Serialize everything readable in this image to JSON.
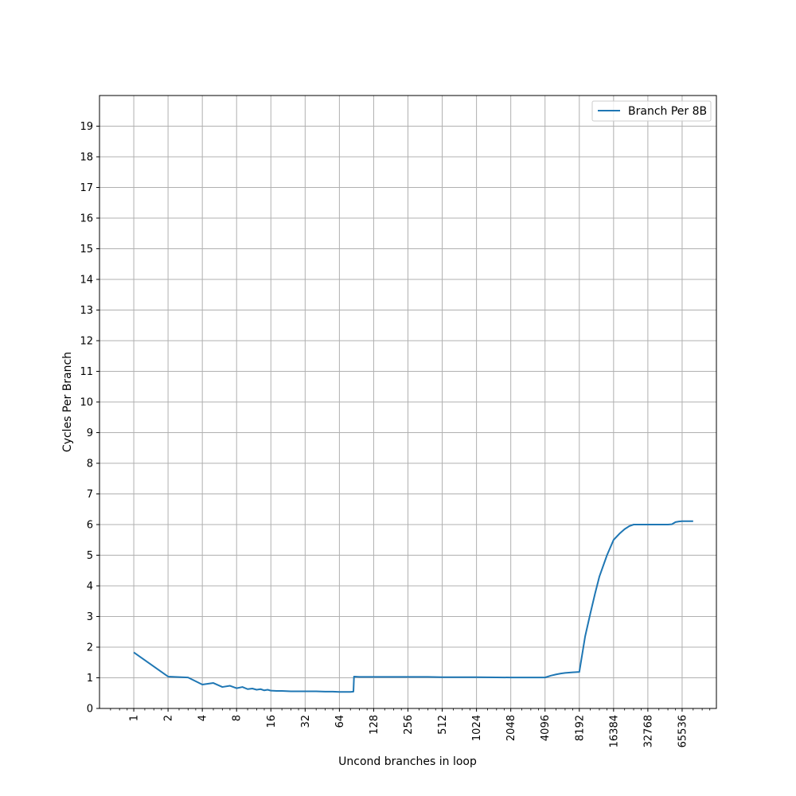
{
  "chart_data": {
    "type": "line",
    "title": "",
    "xlabel": "Uncond branches in loop",
    "ylabel": "Cycles Per Branch",
    "x_scale": "log2",
    "xlim": [
      0.5,
      131072
    ],
    "ylim": [
      0,
      20
    ],
    "xticks": [
      1,
      2,
      4,
      8,
      16,
      32,
      64,
      128,
      256,
      512,
      1024,
      2048,
      4096,
      8192,
      16384,
      32768,
      65536
    ],
    "xtick_labels": [
      "1",
      "2",
      "4",
      "8",
      "16",
      "32",
      "64",
      "128",
      "256",
      "512",
      "1024",
      "2048",
      "4096",
      "8192",
      "16384",
      "32768",
      "65536"
    ],
    "yticks": [
      0,
      1,
      2,
      3,
      4,
      5,
      6,
      7,
      8,
      9,
      10,
      11,
      12,
      13,
      14,
      15,
      16,
      17,
      18,
      19
    ],
    "ytick_labels": [
      "0",
      "1",
      "2",
      "3",
      "4",
      "5",
      "6",
      "7",
      "8",
      "9",
      "10",
      "11",
      "12",
      "13",
      "14",
      "15",
      "16",
      "17",
      "18",
      "19"
    ],
    "grid": true,
    "legend_position": "top-right",
    "series": [
      {
        "name": "Branch Per 8B",
        "color": "#1f77b4",
        "x": [
          1,
          2,
          3,
          4,
          5,
          6,
          7,
          8,
          9,
          10,
          11,
          12,
          13,
          14,
          15,
          16,
          18,
          20,
          24,
          28,
          32,
          40,
          48,
          56,
          64,
          72,
          80,
          85,
          86,
          96,
          128,
          192,
          256,
          384,
          512,
          768,
          1024,
          2048,
          3072,
          4096,
          4608,
          5120,
          5632,
          6144,
          7168,
          8192,
          9216,
          10240,
          11264,
          12288,
          14336,
          16384,
          18432,
          20480,
          22528,
          24576,
          26624,
          28672,
          30720,
          32768,
          36864,
          40960,
          45056,
          49152,
          53248,
          57344,
          61440,
          65536,
          73728,
          81920
        ],
        "values": [
          1.83,
          1.04,
          1.01,
          0.78,
          0.83,
          0.7,
          0.74,
          0.66,
          0.7,
          0.63,
          0.65,
          0.61,
          0.63,
          0.59,
          0.61,
          0.58,
          0.57,
          0.57,
          0.56,
          0.56,
          0.56,
          0.56,
          0.55,
          0.55,
          0.54,
          0.54,
          0.54,
          0.55,
          1.04,
          1.03,
          1.03,
          1.03,
          1.03,
          1.03,
          1.02,
          1.02,
          1.02,
          1.01,
          1.01,
          1.01,
          1.07,
          1.11,
          1.14,
          1.16,
          1.18,
          1.19,
          2.35,
          3.1,
          3.75,
          4.3,
          5.0,
          5.5,
          5.7,
          5.85,
          5.95,
          6.0,
          6.0,
          6.0,
          6.0,
          6.0,
          6.0,
          6.0,
          6.0,
          6.0,
          6.01,
          6.08,
          6.1,
          6.11,
          6.11,
          6.11
        ]
      }
    ]
  }
}
